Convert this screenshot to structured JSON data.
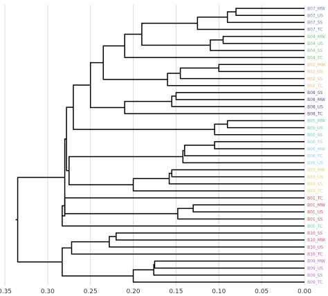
{
  "chart_data": {
    "type": "dendrogram",
    "orientation": "leaves-right",
    "x_axis": {
      "range": [
        0.35,
        0.0
      ],
      "ticks": [
        "0.35",
        "0.30",
        "0.25",
        "0.20",
        "0.15",
        "0.10",
        "0.05",
        "0.00"
      ],
      "grid": true
    },
    "leaves": [
      {
        "label": "B07_MW",
        "color": "#6a7fb0"
      },
      {
        "label": "B07_US",
        "color": "#6a7fb0"
      },
      {
        "label": "B07_SS",
        "color": "#6a7fb0"
      },
      {
        "label": "B07_TC",
        "color": "#6a7fb0"
      },
      {
        "label": "B04_MW",
        "color": "#7cc07c"
      },
      {
        "label": "B04_US",
        "color": "#7cc07c"
      },
      {
        "label": "B04_SS",
        "color": "#7cc07c"
      },
      {
        "label": "B04_TC",
        "color": "#7cc07c"
      },
      {
        "label": "B02_MW",
        "color": "#e8b878"
      },
      {
        "label": "B02_US",
        "color": "#e8b878"
      },
      {
        "label": "B02_SS",
        "color": "#e8b878"
      },
      {
        "label": "B02_TC",
        "color": "#e8b878"
      },
      {
        "label": "B08_SS",
        "color": "#5a4a8a"
      },
      {
        "label": "B08_MW",
        "color": "#5a4a8a"
      },
      {
        "label": "B08_US",
        "color": "#5a4a8a"
      },
      {
        "label": "B08_TC",
        "color": "#5a4a8a"
      },
      {
        "label": "B05_MW",
        "color": "#6cc4b8"
      },
      {
        "label": "B05_US",
        "color": "#6cc4b8"
      },
      {
        "label": "B05_SS",
        "color": "#6cc4b8"
      },
      {
        "label": "B06_SS",
        "color": "#88d0e8"
      },
      {
        "label": "B06_MW",
        "color": "#88d0e8"
      },
      {
        "label": "B06_TC",
        "color": "#88d0e8"
      },
      {
        "label": "B06_US",
        "color": "#88d0e8"
      },
      {
        "label": "B03_MW",
        "color": "#e0d070"
      },
      {
        "label": "B03_US",
        "color": "#e0d070"
      },
      {
        "label": "B03_SS",
        "color": "#e0d070"
      },
      {
        "label": "B03_TC",
        "color": "#e0d070"
      },
      {
        "label": "B01_TC",
        "color": "#c05050"
      },
      {
        "label": "B01_MW",
        "color": "#c05050"
      },
      {
        "label": "B01_US",
        "color": "#c05050"
      },
      {
        "label": "B01_SS",
        "color": "#c05050"
      },
      {
        "label": "B05_TC",
        "color": "#6cc4b8"
      },
      {
        "label": "B10_SS",
        "color": "#c0508a"
      },
      {
        "label": "B10_MW",
        "color": "#c0508a"
      },
      {
        "label": "B10_US",
        "color": "#c0508a"
      },
      {
        "label": "B10_TC",
        "color": "#c0508a"
      },
      {
        "label": "B09_MW",
        "color": "#b070c0"
      },
      {
        "label": "B09_US",
        "color": "#b070c0"
      },
      {
        "label": "B09_SS",
        "color": "#b070c0"
      },
      {
        "label": "B09_TC",
        "color": "#b070c0"
      }
    ],
    "merges": [
      {
        "a": 0,
        "b": 1,
        "height": 0.08
      },
      {
        "a": "m0",
        "b": 2,
        "height": 0.09
      },
      {
        "a": "m1",
        "b": 3,
        "height": 0.125
      },
      {
        "a": 4,
        "b": 5,
        "height": 0.095
      },
      {
        "a": "m3",
        "b": 6,
        "height": 0.11
      },
      {
        "a": "m2",
        "b": "m4",
        "height": 0.19
      },
      {
        "a": "m5",
        "b": 7,
        "height": 0.21
      },
      {
        "a": 8,
        "b": 9,
        "height": 0.1
      },
      {
        "a": "m7",
        "b": 10,
        "height": 0.145
      },
      {
        "a": "m8",
        "b": 11,
        "height": 0.16
      },
      {
        "a": "m6",
        "b": "m9",
        "height": 0.235
      },
      {
        "a": 12,
        "b": 13,
        "height": 0.15
      },
      {
        "a": "m11",
        "b": 14,
        "height": 0.155
      },
      {
        "a": "m12",
        "b": 15,
        "height": 0.21
      },
      {
        "a": "m10",
        "b": "m13",
        "height": 0.25
      },
      {
        "a": 16,
        "b": 17,
        "height": 0.09
      },
      {
        "a": "m15",
        "b": 18,
        "height": 0.105
      },
      {
        "a": "m14",
        "b": "m16",
        "height": 0.27
      },
      {
        "a": 19,
        "b": 20,
        "height": 0.105
      },
      {
        "a": "m18",
        "b": 21,
        "height": 0.14
      },
      {
        "a": "m19",
        "b": 22,
        "height": 0.142
      },
      {
        "a": 23,
        "b": 24,
        "height": 0.155
      },
      {
        "a": "m21",
        "b": 25,
        "height": 0.158
      },
      {
        "a": "m22",
        "b": 26,
        "height": 0.2
      },
      {
        "a": "m20",
        "b": "m23",
        "height": 0.275
      },
      {
        "a": "m17",
        "b": "m24",
        "height": 0.278
      },
      {
        "a": 28,
        "b": 29,
        "height": 0.13
      },
      {
        "a": "m26",
        "b": 30,
        "height": 0.148
      },
      {
        "a": 27,
        "b": "m27",
        "height": 0.28
      },
      {
        "a": "m28",
        "b": 31,
        "height": 0.283
      },
      {
        "a": "m25",
        "b": "m29",
        "height": 0.28
      },
      {
        "a": 32,
        "b": 33,
        "height": 0.22
      },
      {
        "a": "m31",
        "b": 34,
        "height": 0.228
      },
      {
        "a": "m32",
        "b": 35,
        "height": 0.272
      },
      {
        "a": 36,
        "b": 37,
        "height": 0.175
      },
      {
        "a": "m34",
        "b": 38,
        "height": 0.176
      },
      {
        "a": "m35",
        "b": 39,
        "height": 0.2
      },
      {
        "a": "m33",
        "b": "m36",
        "height": 0.283
      },
      {
        "a": "m30",
        "b": "m37",
        "height": 0.335
      }
    ]
  }
}
